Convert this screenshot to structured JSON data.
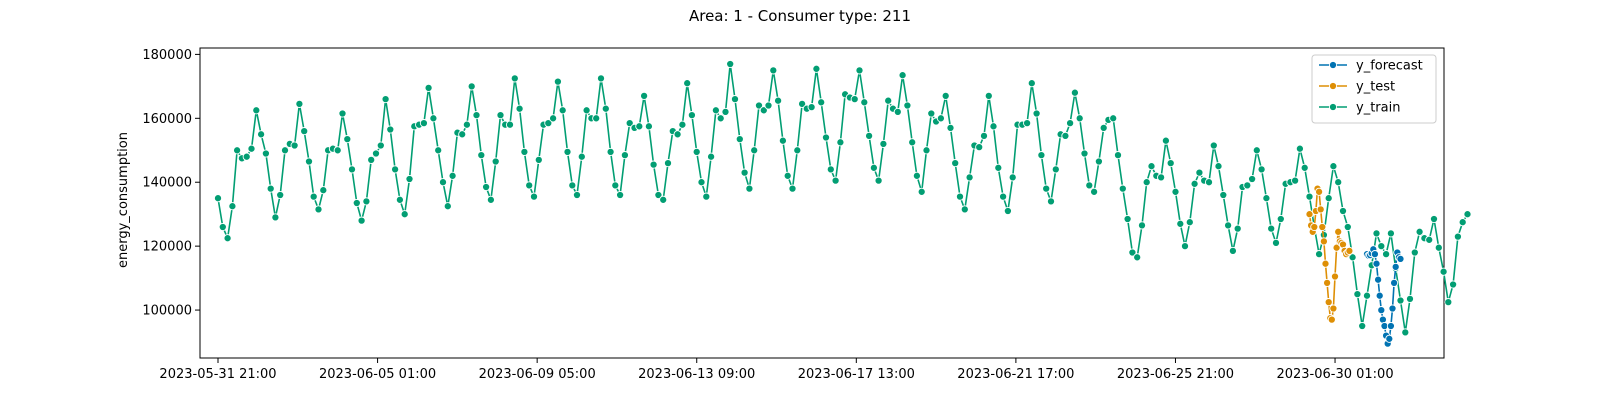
{
  "chart_data": {
    "type": "line",
    "title": "Area: 1 - Consumer type: 211",
    "xlabel": "",
    "ylabel": "energy_consumption",
    "x_range": [
      "2023-05-31 21:00",
      "2023-07-02 10:00"
    ],
    "ylim": [
      85000,
      182000
    ],
    "y_ticks": [
      100000,
      120000,
      140000,
      160000,
      180000
    ],
    "y_tick_labels": [
      "100000",
      "120000",
      "140000",
      "160000",
      "180000"
    ],
    "x_ticks": [
      "2023-05-31 21:00",
      "2023-06-05 01:00",
      "2023-06-09 05:00",
      "2023-06-13 09:00",
      "2023-06-17 13:00",
      "2023-06-21 17:00",
      "2023-06-25 21:00",
      "2023-06-30 01:00"
    ],
    "x_tick_labels": [
      "2023-05-31 21:00",
      "2023-06-05 01:00",
      "2023-06-09 05:00",
      "2023-06-13 09:00",
      "2023-06-17 13:00",
      "2023-06-21 17:00",
      "2023-06-25 21:00",
      "2023-06-30 01:00"
    ],
    "grid": false,
    "legend_position": "top-right",
    "series": [
      {
        "name": "y_forecast",
        "color": "#0173b2",
        "start": "2023-06-30 21:00",
        "points": [
          [
            "2023-06-30 21:00",
            117500
          ],
          [
            "2023-06-30 22:00",
            117000
          ],
          [
            "2023-06-30 23:00",
            117200
          ],
          [
            "2023-07-01 00:00",
            117800
          ],
          [
            "2023-07-01 01:00",
            119000
          ],
          [
            "2023-07-01 02:00",
            117500
          ],
          [
            "2023-07-01 03:00",
            114500
          ],
          [
            "2023-07-01 04:00",
            109500
          ],
          [
            "2023-07-01 05:00",
            104500
          ],
          [
            "2023-07-01 06:00",
            100000
          ],
          [
            "2023-07-01 07:00",
            97000
          ],
          [
            "2023-07-01 08:00",
            95000
          ],
          [
            "2023-07-01 09:00",
            92000
          ],
          [
            "2023-07-01 10:00",
            89500
          ],
          [
            "2023-07-01 11:00",
            91000
          ],
          [
            "2023-07-01 12:00",
            95000
          ],
          [
            "2023-07-01 13:00",
            100500
          ],
          [
            "2023-07-01 14:00",
            108500
          ],
          [
            "2023-07-01 15:00",
            113500
          ],
          [
            "2023-07-01 16:00",
            118000
          ],
          [
            "2023-07-01 17:00",
            116500
          ],
          [
            "2023-07-01 18:00",
            116000
          ]
        ]
      },
      {
        "name": "y_test",
        "color": "#de8f05",
        "start": "2023-06-29 09:00",
        "points": [
          [
            "2023-06-29 09:00",
            130000
          ],
          [
            "2023-06-29 10:00",
            126500
          ],
          [
            "2023-06-29 11:00",
            124500
          ],
          [
            "2023-06-29 12:00",
            126000
          ],
          [
            "2023-06-29 13:00",
            131000
          ],
          [
            "2023-06-29 14:00",
            138000
          ],
          [
            "2023-06-29 15:00",
            137000
          ],
          [
            "2023-06-29 16:00",
            131500
          ],
          [
            "2023-06-29 17:00",
            126000
          ],
          [
            "2023-06-29 18:00",
            121500
          ],
          [
            "2023-06-29 19:00",
            114500
          ],
          [
            "2023-06-29 20:00",
            108500
          ],
          [
            "2023-06-29 21:00",
            102500
          ],
          [
            "2023-06-29 22:00",
            97500
          ],
          [
            "2023-06-29 23:00",
            97000
          ],
          [
            "2023-06-30 00:00",
            100500
          ],
          [
            "2023-06-30 01:00",
            110500
          ],
          [
            "2023-06-30 02:00",
            119500
          ],
          [
            "2023-06-30 03:00",
            124500
          ],
          [
            "2023-06-30 04:00",
            121500
          ],
          [
            "2023-06-30 05:00",
            121000
          ],
          [
            "2023-06-30 06:00",
            120500
          ],
          [
            "2023-06-30 07:00",
            118500
          ],
          [
            "2023-06-30 08:00",
            117500
          ],
          [
            "2023-06-30 09:00",
            118000
          ],
          [
            "2023-06-30 10:00",
            118500
          ]
        ]
      },
      {
        "name": "y_train",
        "color": "#029e73",
        "start": "2023-05-31 21:00",
        "step_hours": 3,
        "values": [
          135000,
          126000,
          122500,
          132500,
          150000,
          147500,
          148000,
          150500,
          162500,
          155000,
          149000,
          138000,
          129000,
          136000,
          150000,
          152000,
          151500,
          164500,
          156000,
          146500,
          135500,
          131500,
          137500,
          150000,
          150500,
          150000,
          161500,
          153500,
          144000,
          133500,
          128000,
          134000,
          147000,
          149000,
          151500,
          166000,
          156500,
          144000,
          134500,
          130000,
          141000,
          157500,
          158000,
          158500,
          169500,
          160000,
          150000,
          140000,
          132500,
          142000,
          155500,
          155000,
          158000,
          170000,
          161000,
          148500,
          138500,
          134500,
          146500,
          161000,
          158000,
          158000,
          172500,
          163000,
          149500,
          139000,
          135500,
          147000,
          158000,
          158500,
          160000,
          171500,
          162500,
          149500,
          139000,
          136000,
          148000,
          162500,
          160000,
          160000,
          172500,
          163000,
          149500,
          139000,
          136000,
          148500,
          158500,
          157000,
          157500,
          167000,
          157500,
          145500,
          136000,
          134500,
          146000,
          156000,
          155000,
          158000,
          171000,
          161000,
          149500,
          140000,
          135500,
          148000,
          162500,
          160000,
          162000,
          177000,
          166000,
          153500,
          143000,
          138000,
          150000,
          164000,
          162500,
          164000,
          175000,
          165500,
          153000,
          142000,
          138000,
          150000,
          164500,
          163000,
          163500,
          175500,
          165000,
          154000,
          144000,
          140500,
          152500,
          167500,
          166500,
          166000,
          175000,
          165000,
          154500,
          144500,
          140500,
          152000,
          165500,
          163000,
          162000,
          173500,
          164000,
          152500,
          142000,
          137000,
          150000,
          161500,
          159000,
          160000,
          167000,
          157000,
          146000,
          135500,
          131500,
          141500,
          151500,
          151000,
          154500,
          167000,
          157500,
          144500,
          135500,
          131000,
          141500,
          158000,
          158000,
          158500,
          171000,
          161500,
          148500,
          138000,
          134000,
          144000,
          155000,
          154500,
          158500,
          168000,
          160000,
          149000,
          139000,
          137000,
          146500,
          157000,
          159500,
          160000,
          148500,
          138000,
          128500,
          118000,
          116500,
          126500,
          140000,
          145000,
          142000,
          141500,
          153000,
          146000,
          137000,
          127000,
          120000,
          127500,
          139500,
          143000,
          140500,
          140000,
          151500,
          145000,
          136000,
          126500,
          118500,
          125500,
          138500,
          139000,
          141000,
          150000,
          144000,
          135000,
          125500,
          121000,
          128500,
          139500,
          140000,
          140500,
          150500,
          144500,
          135500,
          126000,
          117500,
          123500,
          135000,
          145000,
          140000,
          131000,
          126000,
          116500,
          105000,
          95000,
          104500,
          114000,
          124000,
          120000,
          117500,
          124000,
          113000,
          103000,
          93000,
          103500,
          118000,
          124500,
          122500,
          122000,
          128500,
          119500,
          112000,
          102500,
          108000,
          123000,
          127500,
          130000
        ]
      }
    ]
  }
}
